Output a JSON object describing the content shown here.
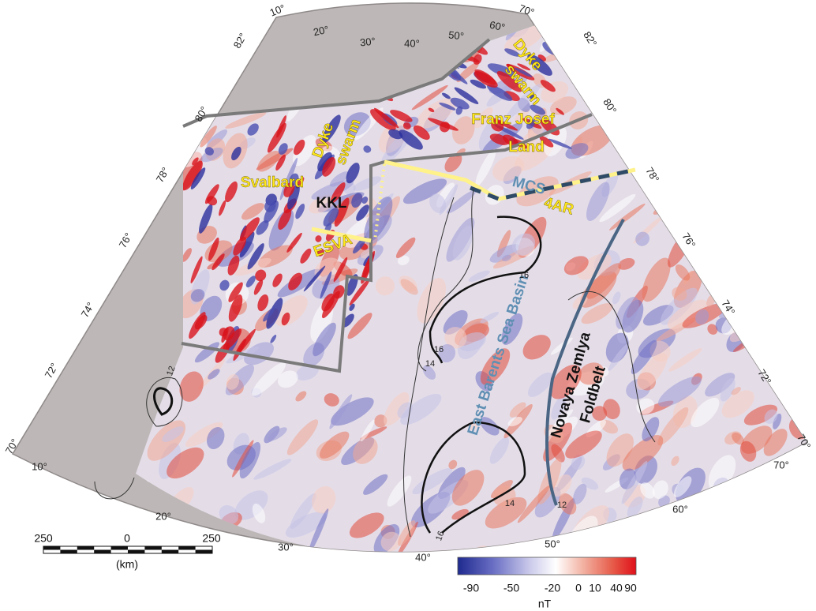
{
  "graticule": {
    "top": [
      "10°",
      "20°",
      "30°",
      "40°",
      "50°",
      "60°",
      "70°"
    ],
    "left": [
      "82°",
      "80°",
      "78°",
      "76°",
      "74°",
      "72°",
      "70°"
    ],
    "right": [
      "82°",
      "80°",
      "78°",
      "76°",
      "74°",
      "72°",
      "70°"
    ],
    "bottom": [
      "10°",
      "20°",
      "30°",
      "40°",
      "50°",
      "60°",
      "70°"
    ]
  },
  "regions": {
    "dyke_swarm_east": [
      "Dyke",
      "swarm"
    ],
    "franz_josef_land": [
      "Franz Josef",
      "Land"
    ],
    "dyke_swarm_svalbard": [
      "Dyke",
      "swarm"
    ],
    "svalbard": "Svalbard",
    "kkl": "KKL",
    "esva": "ESVA",
    "mcs": "MCS",
    "four_ar": "4AR",
    "east_barents_sea_basin": "East Barents Sea Basin",
    "novaya_zemlya_foldbelt": [
      "Novaya Zemlya",
      "Foldbelt"
    ]
  },
  "contour_labels": [
    "16",
    "16",
    "14",
    "16",
    "14",
    "12",
    "12"
  ],
  "scale_bar": {
    "ticks": [
      "250",
      "0",
      "250"
    ],
    "unit": "(km)"
  },
  "colorbar": {
    "ticks": [
      -90,
      -50,
      -20,
      0,
      10,
      40,
      90
    ],
    "unit": "nT"
  }
}
